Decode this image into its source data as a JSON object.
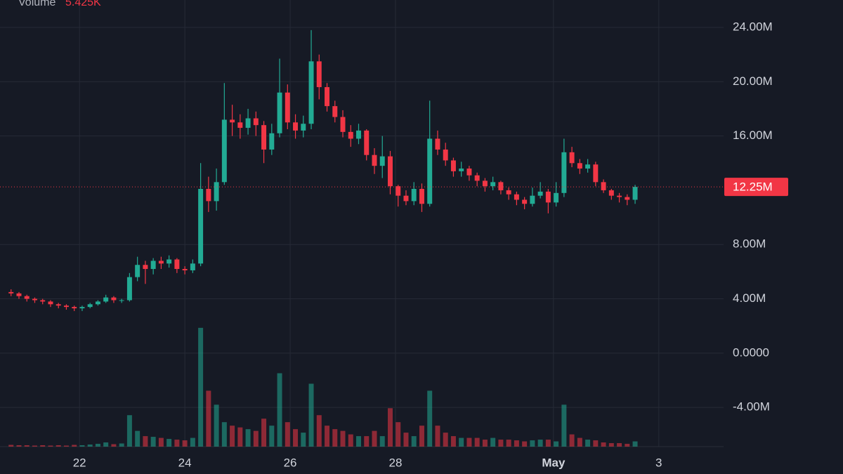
{
  "chart_data": {
    "type": "candlestick",
    "legend_title": "Volume",
    "legend_value": "5.425K",
    "last_price": {
      "value": 12.25,
      "label": "12.25M"
    },
    "up_color": "#22ab94",
    "down_color": "#f23645",
    "grid": true,
    "xlim": [
      20.49,
      34.23
    ],
    "xticks": [
      22,
      24,
      26,
      28,
      {
        "value": 31,
        "label": "May"
      },
      {
        "value": 33,
        "label": "3"
      }
    ],
    "ylim": [
      -6.89,
      26.02
    ],
    "yticks": [
      {
        "value": 24,
        "label": "24.00M"
      },
      {
        "value": 20,
        "label": "20.00M"
      },
      {
        "value": 16,
        "label": "16.00M"
      },
      {
        "value": 8,
        "label": "8.00M"
      },
      {
        "value": 4,
        "label": "4.00M"
      },
      {
        "value": 0,
        "label": "0.0000"
      },
      {
        "value": -4,
        "label": "-4.00M"
      }
    ],
    "volume_lim": [
      0,
      400
    ],
    "x": [
      20.7,
      20.85,
      21,
      21.15,
      21.3,
      21.45,
      21.6,
      21.75,
      21.9,
      22.05,
      22.2,
      22.35,
      22.5,
      22.65,
      22.8,
      22.95,
      23.1,
      23.25,
      23.4,
      23.55,
      23.7,
      23.85,
      24,
      24.15,
      24.3,
      24.45,
      24.6,
      24.75,
      24.9,
      25.05,
      25.2,
      25.35,
      25.5,
      25.65,
      25.8,
      25.95,
      26.1,
      26.25,
      26.4,
      26.55,
      26.7,
      26.85,
      27,
      27.15,
      27.3,
      27.45,
      27.6,
      27.75,
      27.9,
      28.05,
      28.2,
      28.35,
      28.5,
      28.65,
      28.8,
      28.95,
      29.1,
      29.25,
      29.4,
      29.55,
      29.7,
      29.85,
      30,
      30.15,
      30.3,
      30.45,
      30.6,
      30.75,
      30.9,
      31.05,
      31.2,
      31.35,
      31.5,
      31.65,
      31.8,
      31.95,
      32.1,
      32.25,
      32.4,
      32.55
    ],
    "open": [
      4.5,
      4.4,
      4.2,
      4.0,
      3.9,
      3.8,
      3.6,
      3.5,
      3.4,
      3.3,
      3.4,
      3.6,
      3.8,
      4.1,
      3.9,
      3.9,
      5.6,
      6.5,
      6.2,
      6.8,
      6.6,
      6.9,
      6.2,
      6.1,
      6.6,
      12.1,
      11.2,
      12.6,
      17.2,
      17.0,
      16.6,
      17.3,
      16.8,
      15.0,
      16.2,
      19.2,
      17.0,
      16.4,
      16.9,
      21.5,
      19.6,
      18.2,
      17.4,
      16.3,
      15.8,
      16.4,
      14.6,
      13.8,
      14.5,
      12.3,
      11.6,
      11.2,
      12.1,
      11.0,
      15.8,
      15.0,
      14.2,
      13.4,
      13.6,
      13.1,
      12.7,
      12.3,
      12.6,
      12.0,
      11.7,
      11.3,
      11.0,
      11.6,
      11.9,
      11.1,
      11.8,
      14.8,
      14.0,
      13.6,
      13.9,
      12.6,
      12.0,
      11.6,
      11.5,
      11.3
    ],
    "high": [
      4.7,
      4.5,
      4.3,
      4.1,
      4.0,
      3.9,
      3.7,
      3.6,
      3.5,
      3.5,
      3.7,
      3.9,
      4.3,
      4.2,
      4.0,
      5.9,
      7.1,
      6.8,
      7.0,
      7.1,
      7.2,
      7.0,
      6.4,
      6.9,
      14.0,
      13.0,
      13.6,
      19.9,
      18.3,
      17.6,
      18.0,
      17.8,
      17.1,
      16.9,
      21.7,
      19.8,
      17.6,
      17.5,
      23.8,
      22.0,
      19.9,
      18.6,
      17.9,
      16.8,
      16.9,
      16.5,
      15.1,
      16.0,
      14.9,
      12.4,
      12.0,
      12.6,
      12.5,
      18.6,
      16.4,
      15.5,
      14.4,
      14.1,
      13.8,
      13.3,
      12.9,
      13.0,
      12.7,
      12.2,
      11.9,
      11.5,
      12.2,
      12.6,
      12.1,
      12.6,
      15.8,
      15.2,
      14.3,
      14.3,
      14.1,
      12.8,
      12.1,
      11.8,
      11.7,
      12.4
    ],
    "low": [
      4.2,
      4.0,
      3.8,
      3.7,
      3.6,
      3.4,
      3.3,
      3.2,
      3.1,
      3.1,
      3.3,
      3.5,
      3.7,
      3.7,
      3.7,
      3.8,
      5.3,
      5.1,
      5.8,
      6.2,
      6.3,
      5.9,
      5.8,
      5.9,
      6.4,
      10.4,
      10.5,
      12.4,
      16.0,
      15.8,
      16.1,
      16.0,
      14.0,
      14.6,
      15.9,
      16.5,
      15.8,
      15.9,
      16.5,
      18.7,
      17.8,
      17.0,
      15.9,
      15.2,
      15.4,
      14.2,
      13.2,
      12.9,
      11.7,
      10.8,
      10.9,
      10.9,
      10.4,
      10.8,
      14.6,
      13.8,
      13.0,
      13.0,
      12.7,
      12.3,
      11.9,
      12.0,
      11.7,
      11.3,
      10.9,
      10.6,
      10.8,
      11.4,
      10.3,
      10.8,
      11.5,
      13.7,
      13.2,
      13.3,
      12.3,
      11.8,
      11.3,
      11.1,
      10.9,
      11.0
    ],
    "close": [
      4.4,
      4.2,
      4.0,
      3.9,
      3.8,
      3.6,
      3.5,
      3.4,
      3.3,
      3.4,
      3.6,
      3.8,
      4.1,
      3.9,
      3.9,
      5.6,
      6.5,
      6.2,
      6.8,
      6.6,
      6.9,
      6.2,
      6.1,
      6.6,
      12.1,
      11.2,
      12.6,
      17.2,
      17.0,
      16.6,
      17.3,
      16.8,
      15.0,
      16.2,
      19.2,
      17.0,
      16.4,
      16.9,
      21.5,
      19.6,
      18.2,
      17.4,
      16.3,
      15.8,
      16.4,
      14.6,
      13.8,
      14.5,
      12.3,
      11.6,
      11.2,
      12.1,
      11.0,
      15.8,
      15.0,
      14.2,
      13.4,
      13.6,
      13.1,
      12.7,
      12.3,
      12.6,
      12.0,
      11.7,
      11.3,
      11.0,
      11.6,
      11.9,
      11.1,
      11.8,
      14.8,
      14.0,
      13.6,
      13.9,
      12.6,
      12.0,
      11.6,
      11.5,
      11.3,
      12.25
    ],
    "volume": [
      5,
      4,
      4,
      3,
      4,
      3,
      4,
      3,
      5,
      4,
      6,
      8,
      12,
      7,
      9,
      90,
      45,
      30,
      28,
      25,
      22,
      20,
      18,
      25,
      340,
      160,
      120,
      70,
      60,
      55,
      50,
      45,
      80,
      60,
      210,
      70,
      50,
      40,
      180,
      90,
      60,
      50,
      45,
      35,
      30,
      30,
      45,
      30,
      110,
      70,
      40,
      30,
      60,
      160,
      60,
      40,
      30,
      25,
      25,
      25,
      20,
      25,
      20,
      20,
      18,
      15,
      18,
      20,
      20,
      15,
      120,
      35,
      25,
      20,
      18,
      12,
      10,
      10,
      8,
      15
    ]
  }
}
